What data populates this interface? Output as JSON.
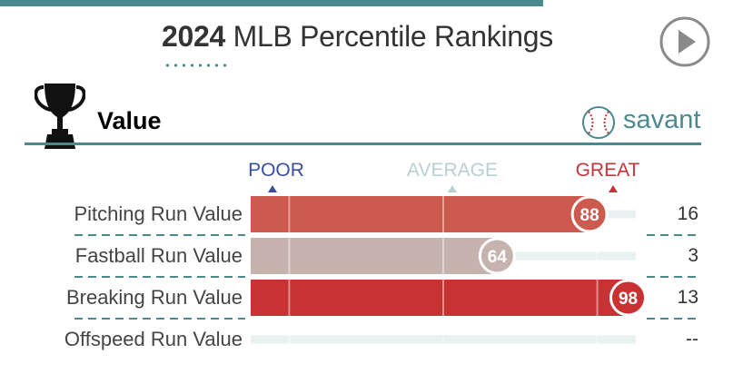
{
  "header": {
    "year": "2024",
    "title": "MLB Percentile Rankings",
    "play_icon": "play-icon"
  },
  "section": {
    "icon": "trophy-icon",
    "title": "Value",
    "brand_icon": "baseball-icon",
    "brand": "savant"
  },
  "scale": {
    "poor": "POOR",
    "average": "AVERAGE",
    "great": "GREAT"
  },
  "colors": {
    "teal": "#4a8a8f",
    "poor": "#3a4fa0",
    "average": "#b8cfd4",
    "great": "#c8323a"
  },
  "chart_data": {
    "type": "bar",
    "categories": [
      "Pitching Run Value",
      "Fastball Run Value",
      "Breaking Run Value",
      "Offspeed Run Value"
    ],
    "percentiles": [
      88,
      64,
      98,
      null
    ],
    "values": [
      "16",
      "3",
      "13",
      "--"
    ],
    "bar_colors": [
      "#cd5a4e",
      "#c6b3ae",
      "#c83232",
      null
    ],
    "xlim": [
      0,
      100
    ],
    "reference_lines": [
      10,
      50,
      90
    ]
  }
}
